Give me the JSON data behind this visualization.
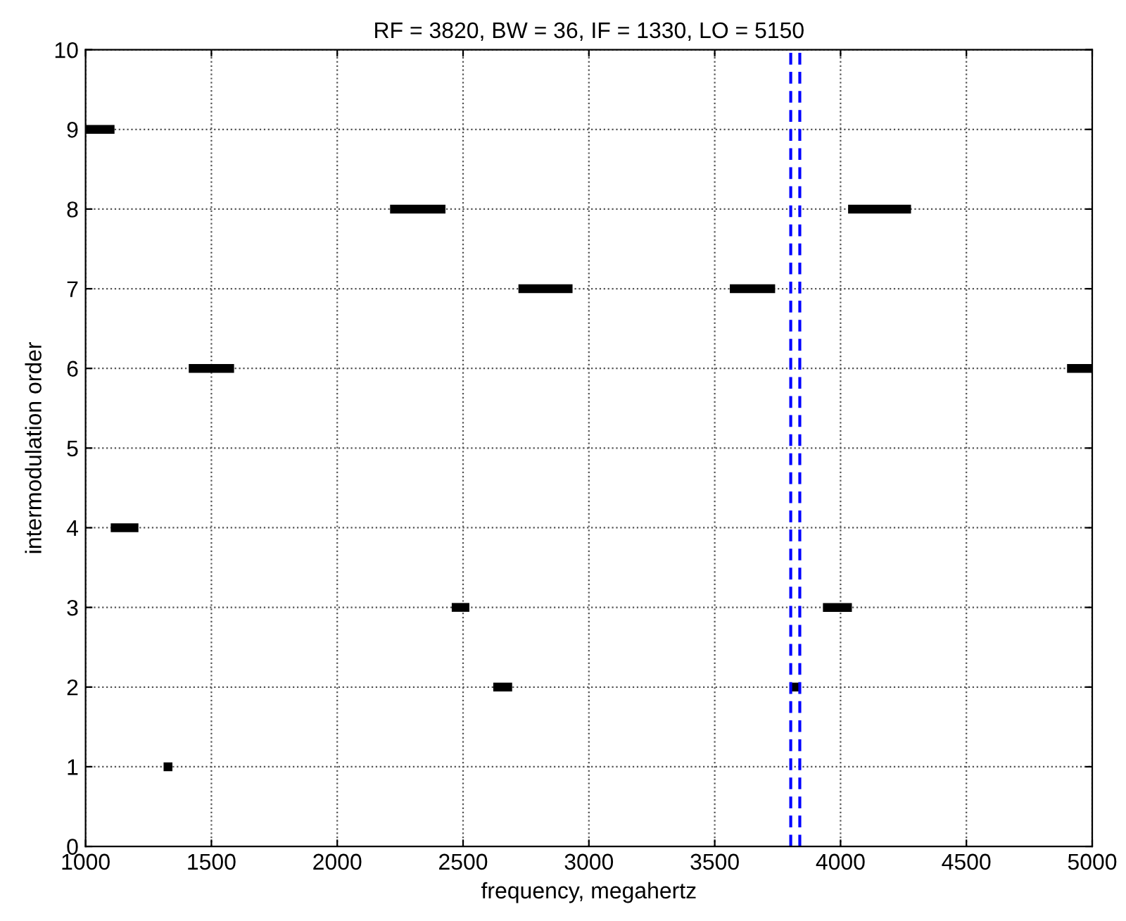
{
  "chart_data": {
    "type": "line",
    "title": "RF = 3820, BW = 36, IF = 1330, LO = 5150",
    "xlabel": "frequency, megahertz",
    "ylabel": "intermodulation order",
    "xlim": [
      1000,
      5000
    ],
    "xticks": [
      1000,
      1500,
      2000,
      2500,
      3000,
      3500,
      4000,
      4500,
      5000
    ],
    "ylim": [
      0,
      10
    ],
    "yticks": [
      0,
      1,
      2,
      3,
      4,
      5,
      6,
      7,
      8,
      9,
      10
    ],
    "grid": true,
    "marker": "none",
    "line_style": "solid",
    "series": [
      {
        "color": "#000000",
        "x": [
          1000,
          1115
        ],
        "values": [
          9,
          9
        ]
      },
      {
        "color": "#000000",
        "x": [
          2210,
          2430
        ],
        "values": [
          8,
          8
        ]
      },
      {
        "color": "#000000",
        "x": [
          4030,
          4280
        ],
        "values": [
          8,
          8
        ]
      },
      {
        "color": "#000000",
        "x": [
          2720,
          2935
        ],
        "values": [
          7,
          7
        ]
      },
      {
        "color": "#000000",
        "x": [
          3560,
          3740
        ],
        "values": [
          7,
          7
        ]
      },
      {
        "color": "#000000",
        "x": [
          1410,
          1590
        ],
        "values": [
          6,
          6
        ]
      },
      {
        "color": "#000000",
        "x": [
          4900,
          5000
        ],
        "values": [
          6,
          6
        ]
      },
      {
        "color": "#000000",
        "x": [
          1100,
          1210
        ],
        "values": [
          4,
          4
        ]
      },
      {
        "color": "#000000",
        "x": [
          2455,
          2525
        ],
        "values": [
          3,
          3
        ]
      },
      {
        "color": "#000000",
        "x": [
          3930,
          4045
        ],
        "values": [
          3,
          3
        ]
      },
      {
        "color": "#000000",
        "x": [
          2620,
          2695
        ],
        "values": [
          2,
          2
        ]
      },
      {
        "color": "#000000",
        "x": [
          3800,
          3835
        ],
        "values": [
          2,
          2
        ]
      },
      {
        "color": "#000000",
        "x": [
          1310,
          1345
        ],
        "values": [
          1,
          1
        ]
      }
    ],
    "ref_lines": [
      {
        "axis": "x",
        "value": 3802,
        "color": "#0000ff",
        "line_style": "dashed"
      },
      {
        "axis": "x",
        "value": 3838,
        "color": "#0000ff",
        "line_style": "dashed"
      }
    ]
  }
}
